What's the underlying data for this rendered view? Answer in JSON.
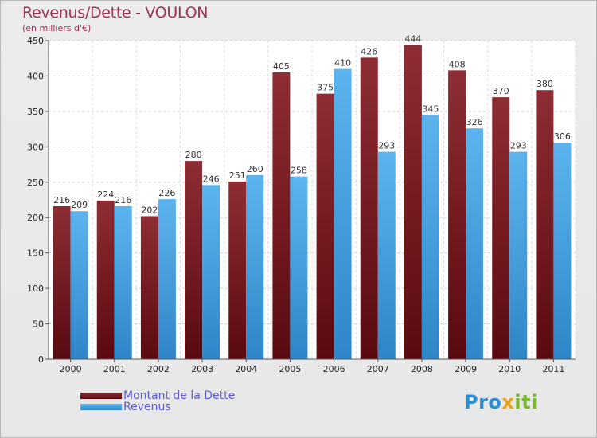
{
  "chart_data": {
    "type": "bar",
    "title": "Revenus/Dette - VOULON",
    "subtitle": "(en milliers d'€)",
    "categories": [
      "2000",
      "2001",
      "2002",
      "2003",
      "2004",
      "2005",
      "2006",
      "2007",
      "2008",
      "2009",
      "2010",
      "2011"
    ],
    "series": [
      {
        "name": "Montant de la Dette",
        "color": "#7a1a22",
        "values": [
          216,
          224,
          202,
          280,
          251,
          405,
          375,
          426,
          444,
          408,
          370,
          380
        ]
      },
      {
        "name": "Revenus",
        "color": "#4ba3e3",
        "values": [
          209,
          216,
          226,
          246,
          260,
          258,
          410,
          293,
          345,
          326,
          293,
          306
        ]
      }
    ],
    "ylim": [
      0,
      450
    ],
    "yticks": [
      0,
      50,
      100,
      150,
      200,
      250,
      300,
      350,
      400,
      450
    ],
    "grid": true,
    "legend": "bottom-left"
  },
  "brand": {
    "parts": [
      "Pro",
      "x",
      "iti"
    ],
    "colors": [
      "#2d8fd0",
      "#e8a21a",
      "#7cb82f"
    ]
  }
}
